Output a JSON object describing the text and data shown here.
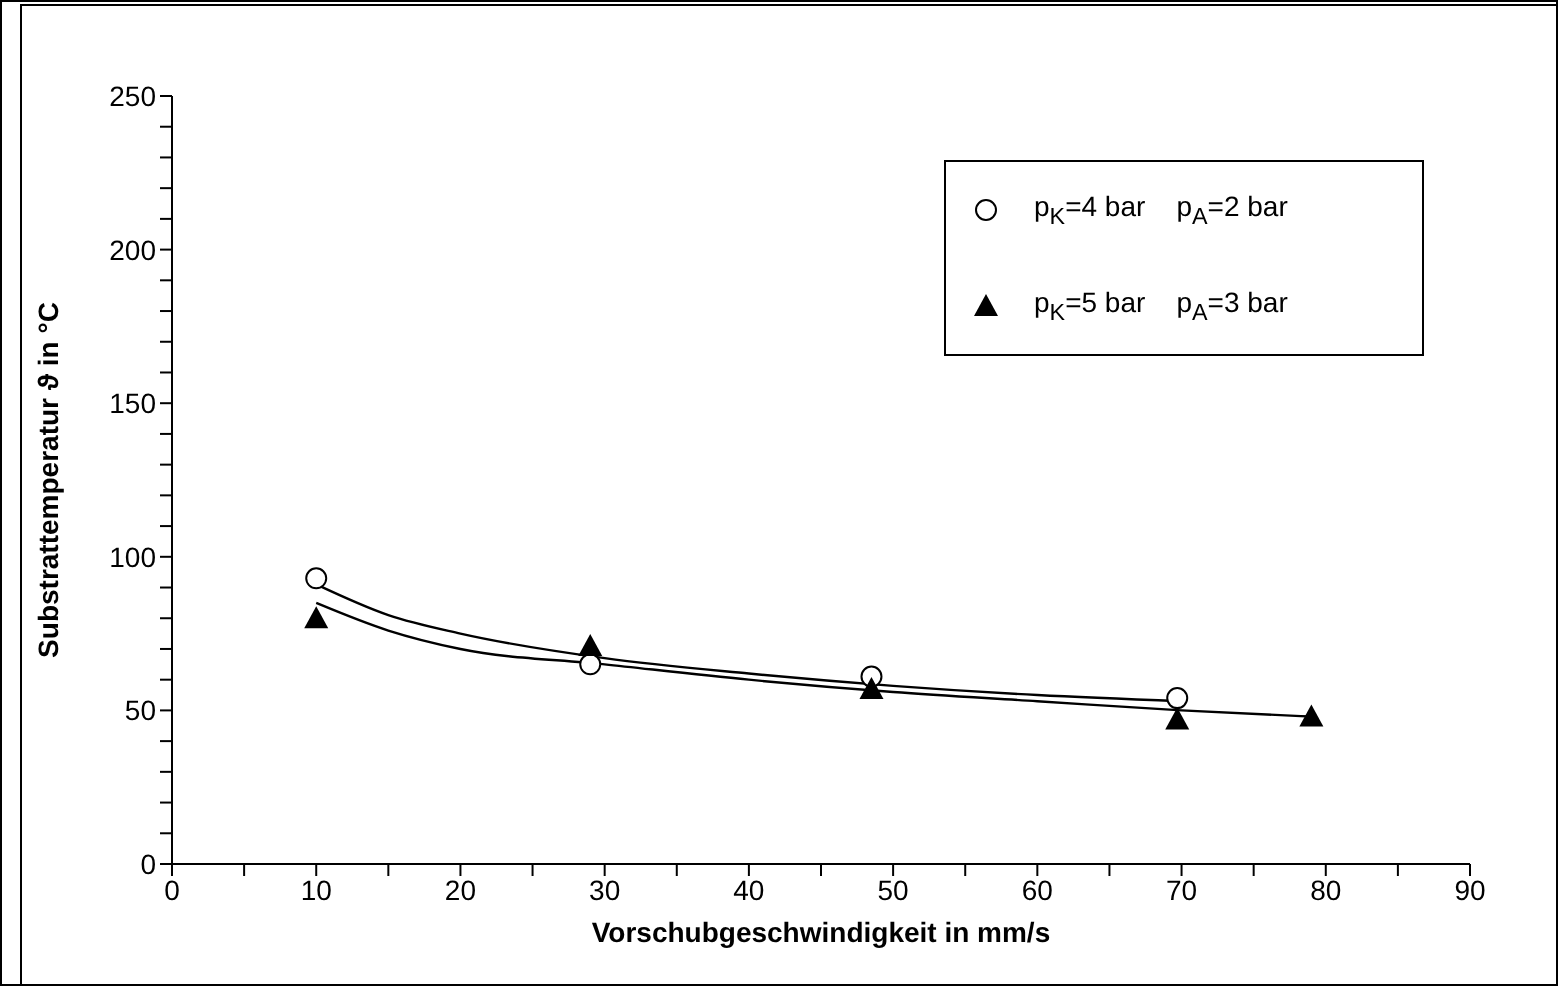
{
  "chart_data": {
    "type": "scatter",
    "xlabel": "Vorschubgeschwindigkeit in mm/s",
    "ylabel": "Substrattemperatur ϑ in °C",
    "xlim": [
      0,
      90
    ],
    "ylim": [
      0,
      250
    ],
    "xticks": [
      0,
      {
        "value": 5,
        "label": null
      },
      10,
      {
        "value": 15,
        "label": null
      },
      20,
      {
        "value": 25,
        "label": null
      },
      30,
      {
        "value": 35,
        "label": null
      },
      40,
      {
        "value": 45,
        "label": null
      },
      50,
      {
        "value": 55,
        "label": null
      },
      60,
      {
        "value": 65,
        "label": null
      },
      70,
      {
        "value": 75,
        "label": null
      },
      80,
      {
        "value": 85,
        "label": null
      },
      90
    ],
    "yticks": [
      0,
      {
        "value": 10,
        "label": null
      },
      {
        "value": 20,
        "label": null
      },
      {
        "value": 30,
        "label": null
      },
      {
        "value": 40,
        "label": null
      },
      50,
      {
        "value": 60,
        "label": null
      },
      {
        "value": 70,
        "label": null
      },
      {
        "value": 80,
        "label": null
      },
      {
        "value": 90,
        "label": null
      },
      100,
      {
        "value": 110,
        "label": null
      },
      {
        "value": 120,
        "label": null
      },
      {
        "value": 130,
        "label": null
      },
      {
        "value": 140,
        "label": null
      },
      150,
      {
        "value": 160,
        "label": null
      },
      {
        "value": 170,
        "label": null
      },
      {
        "value": 180,
        "label": null
      },
      {
        "value": 190,
        "label": null
      },
      200,
      {
        "value": 210,
        "label": null
      },
      {
        "value": 220,
        "label": null
      },
      {
        "value": 230,
        "label": null
      },
      {
        "value": 240,
        "label": null
      },
      250
    ],
    "grid": false,
    "legend": "top right",
    "series": [
      {
        "name": "p$_{K}$=4 bar    p$_{A}$=2 bar",
        "marker": "circle",
        "color": "#000000",
        "x": [
          10,
          29,
          48.5,
          69.7
        ],
        "values": [
          93,
          65,
          61,
          54
        ]
      },
      {
        "name": "p$_{K}$=5 bar    p$_{A}$=3 bar",
        "marker": "triangle",
        "color": "#000000",
        "x": [
          10,
          29,
          48.5,
          69.7,
          79
        ],
        "values": [
          80,
          71,
          57,
          47,
          48
        ]
      },
      {
        "type": "line",
        "marker": "none",
        "color": "#000000",
        "x": [
          10,
          15,
          20,
          30,
          40,
          50,
          60,
          70
        ],
        "values": [
          91,
          81,
          75,
          67,
          62,
          58,
          55,
          53
        ]
      },
      {
        "type": "line",
        "marker": "none",
        "color": "#000000",
        "x": [
          10,
          15,
          20,
          30,
          40,
          50,
          60,
          70,
          79
        ],
        "values": [
          85,
          76,
          70,
          65,
          60,
          56,
          53,
          50,
          48
        ]
      }
    ]
  }
}
